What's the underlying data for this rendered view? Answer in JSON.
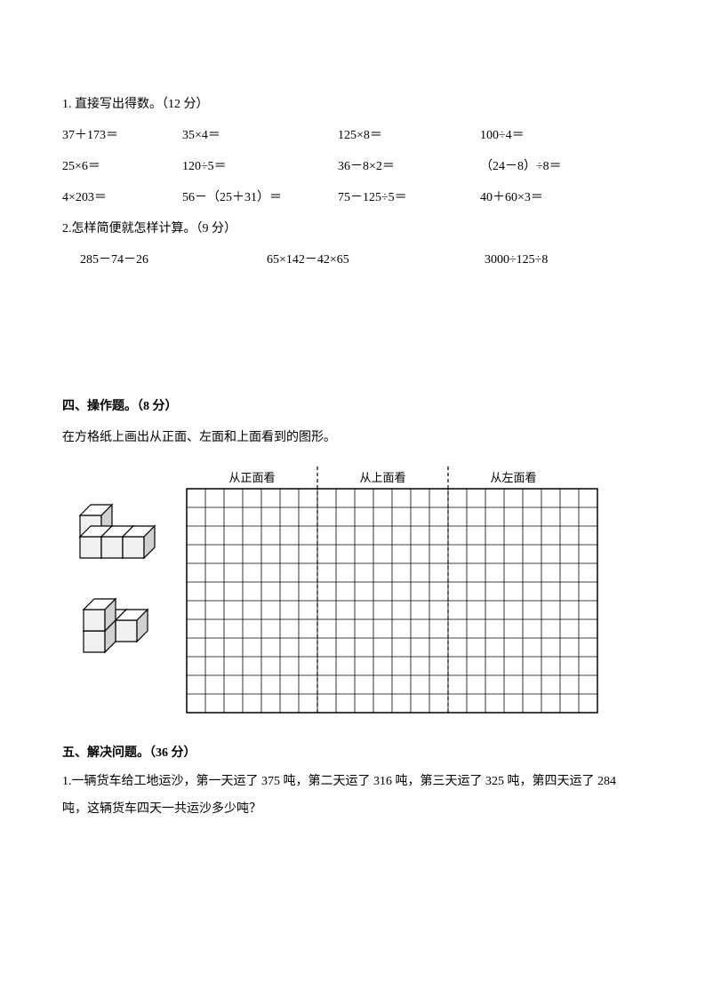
{
  "q1": {
    "title": "1. 直接写出得数。（12 分）",
    "rows": [
      [
        "37＋173＝",
        "35×4＝",
        "125×8＝",
        "100÷4＝"
      ],
      [
        "25×6＝",
        "120÷5＝",
        "36－8×2＝",
        "（24－8）÷8＝"
      ],
      [
        "4×203＝",
        "56－（25＋31）＝",
        "75－125÷5＝",
        "40＋60×3＝"
      ]
    ]
  },
  "q2": {
    "title": "2.怎样简便就怎样计算。（9 分）",
    "items": [
      "285－74－26",
      "65×142－42×65",
      "3000÷125÷8"
    ]
  },
  "sec4": {
    "title": "四、操作题。（8 分）",
    "instr": "在方格纸上画出从正面、左面和上面看到的图形。"
  },
  "sec5": {
    "title": "五、解决问题。（36 分）",
    "p1": "1.一辆货车给工地运沙，第一天运了 375 吨，第二天运了 316 吨，第三天运了 325 吨，第四天运了 284 吨，这辆货车四天一共运沙多少吨？"
  },
  "grid": {
    "labels": {
      "front": "从正面看",
      "top": "从上面看",
      "left": "从左面看"
    },
    "cols": 22,
    "rows": 12,
    "cell": 21,
    "dash_cols": [
      7,
      14
    ],
    "bg": "#ffffff",
    "line": "#000000"
  },
  "cube": {
    "top_fill": "#ffffff",
    "side_fill": "#d0d0d0",
    "front_fill": "#f0f0f0",
    "stroke": "#000000"
  }
}
